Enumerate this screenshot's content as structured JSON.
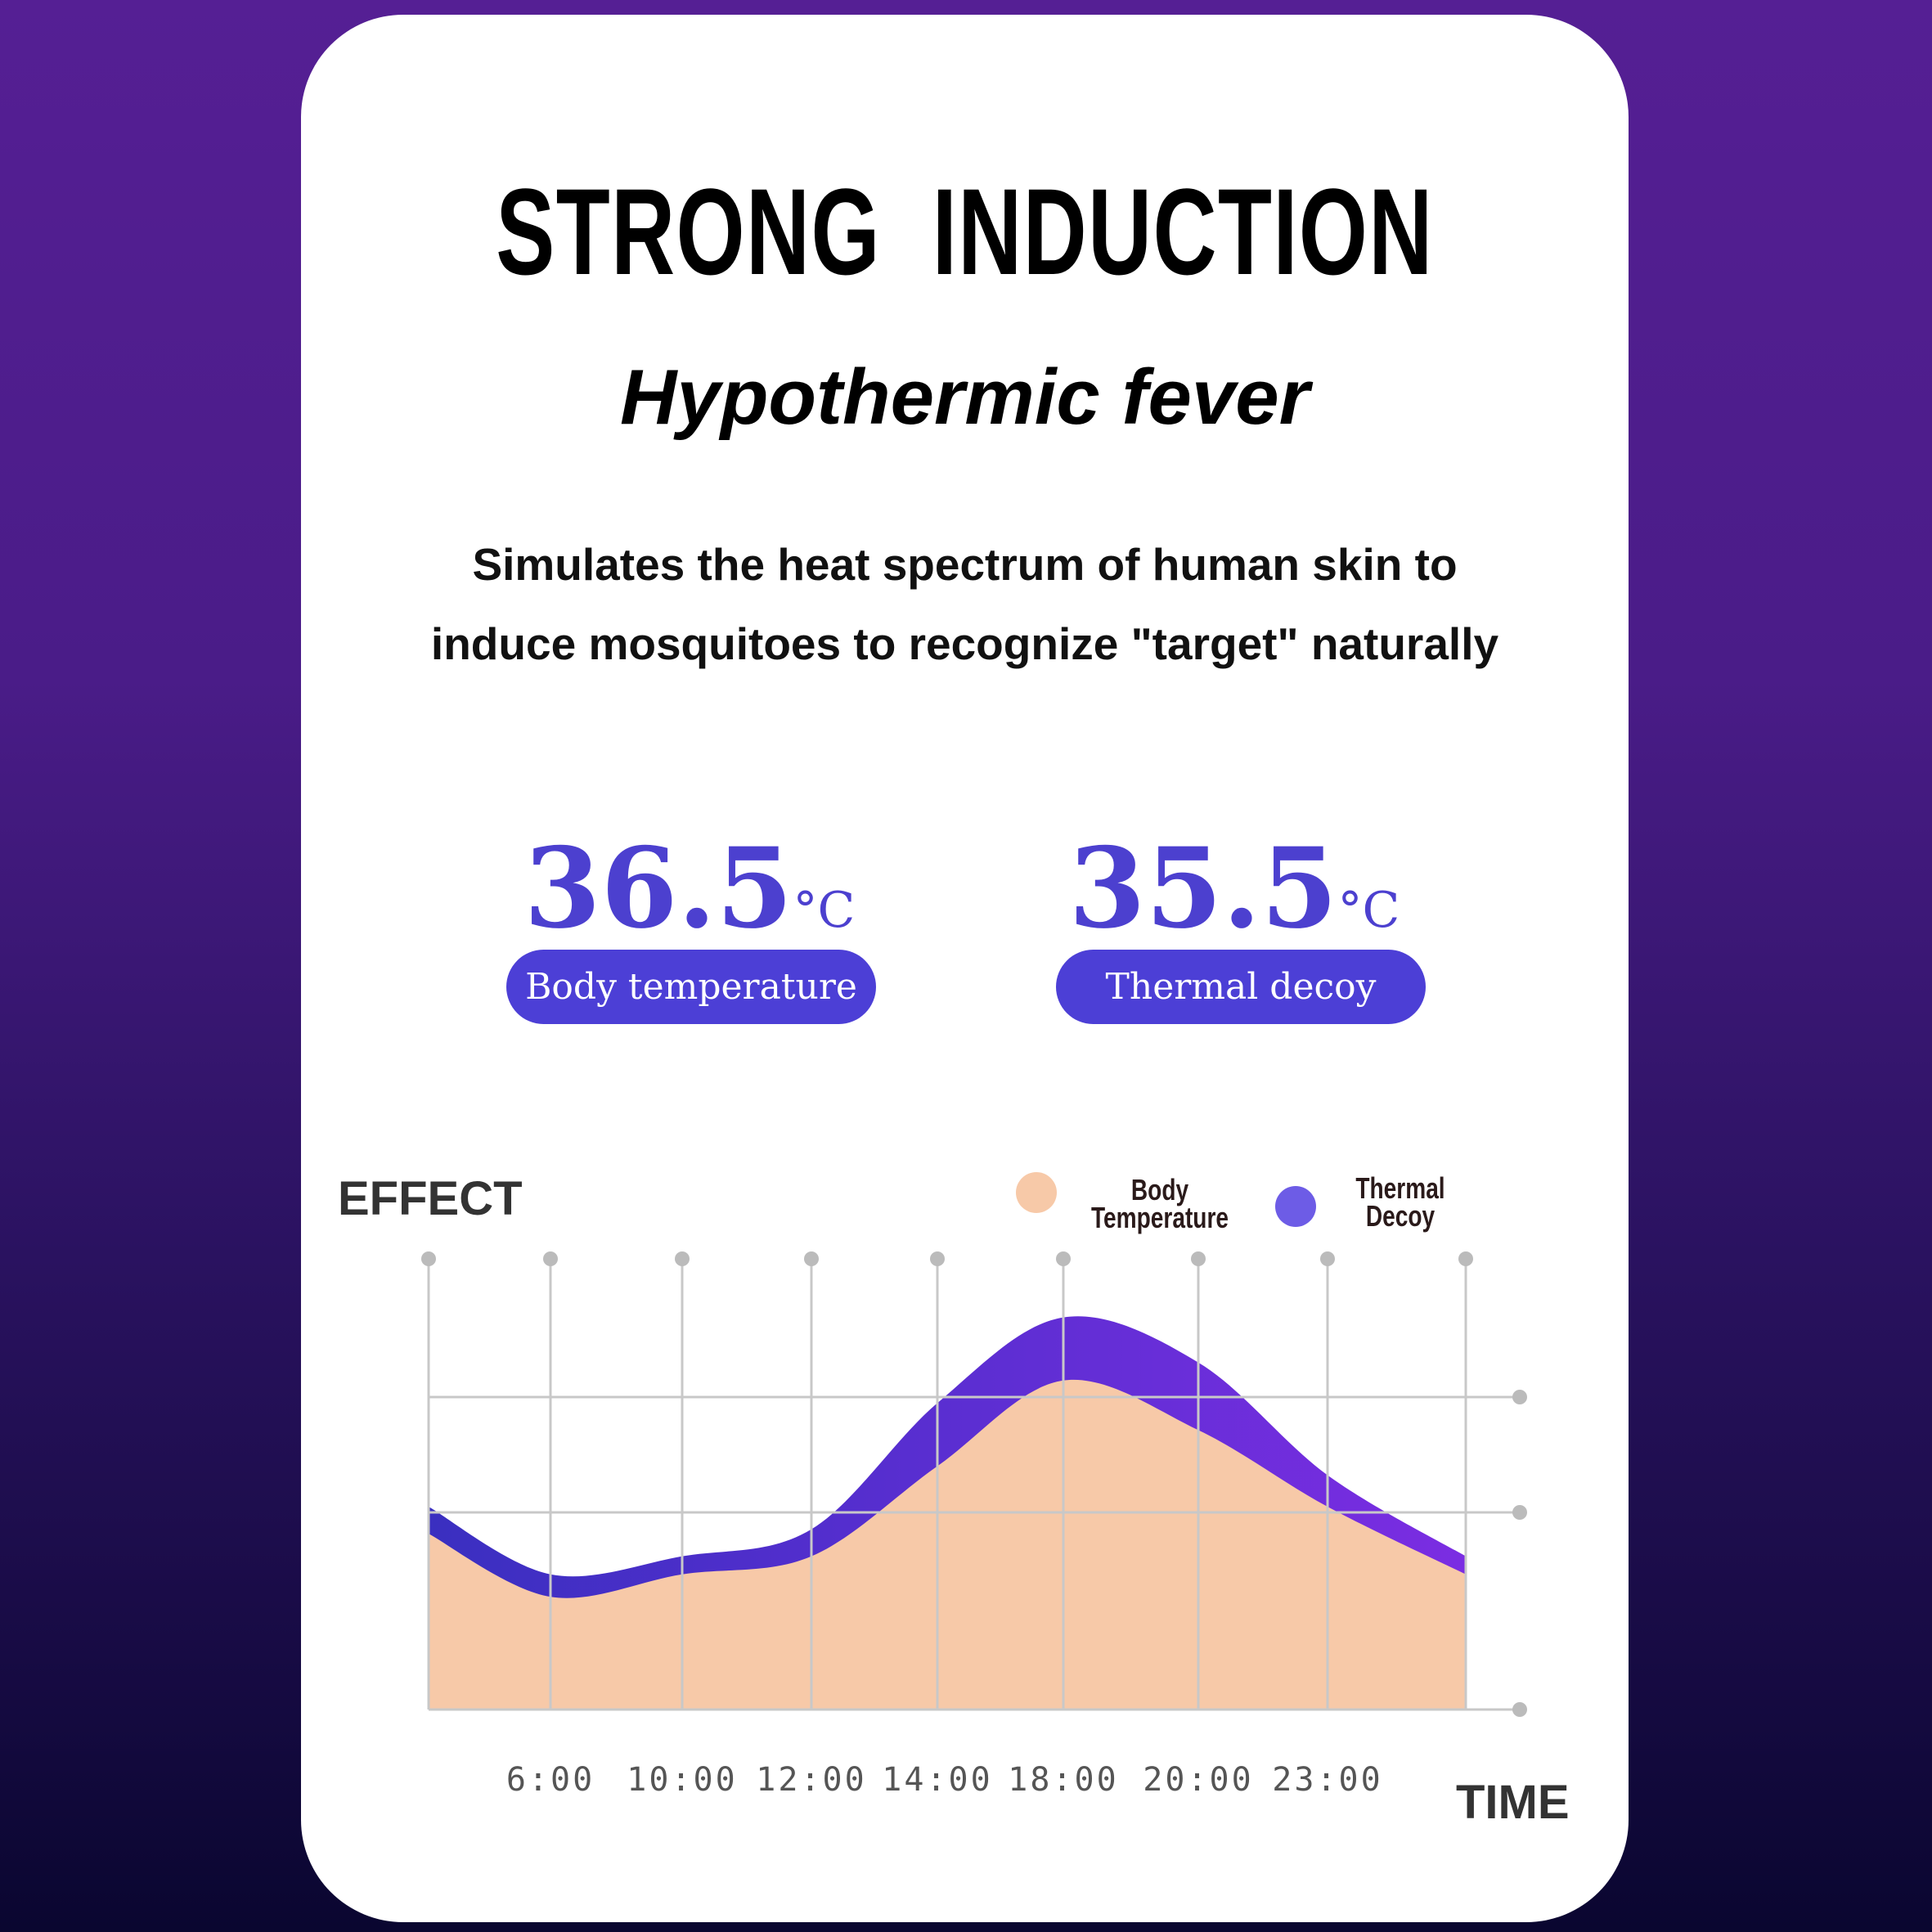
{
  "header": {
    "title": "STRONG  INDUCTION",
    "subtitle": "Hypothermic fever",
    "description_lines": [
      "Simulates the heat spectrum of human skin to",
      "induce mosquitoes to recognize \"target\" naturally"
    ]
  },
  "stats": [
    {
      "value": "36.5",
      "unit": "°C",
      "label": "Body temperature"
    },
    {
      "value": "35.5",
      "unit": "°C",
      "label": "Thermal decoy"
    }
  ],
  "colors": {
    "accent": "#4c3fd6",
    "body": "#f7c9a8",
    "decoy_start": "#3a2fc0",
    "decoy_end": "#7b2de2",
    "grid": "#c8c8c8"
  },
  "chart_data": {
    "type": "area",
    "ylabel": "EFFECT",
    "xlabel": "TIME",
    "x_tick_labels": [
      "",
      "6:00",
      "10:00",
      "12:00",
      "14:00",
      "18:00",
      "20:00",
      "23:00",
      ""
    ],
    "ylim": [
      0,
      100
    ],
    "grid": true,
    "legend_placement": "top-right",
    "series": [
      {
        "name": "Thermal Decoy",
        "color": "#5a3ad8",
        "values": [
          45,
          30,
          34,
          40,
          68,
          87,
          77,
          52,
          34
        ]
      },
      {
        "name": "Body Temperature",
        "color": "#f7c9a8",
        "values": [
          39,
          25,
          30,
          34,
          54,
          73,
          62,
          45,
          30
        ]
      }
    ],
    "legend": [
      {
        "line1": "Body",
        "line2": "Temperature",
        "color": "#f7c9a8"
      },
      {
        "line1": "Thermal",
        "line2": "Decoy",
        "color": "#6d5ce6"
      }
    ]
  }
}
